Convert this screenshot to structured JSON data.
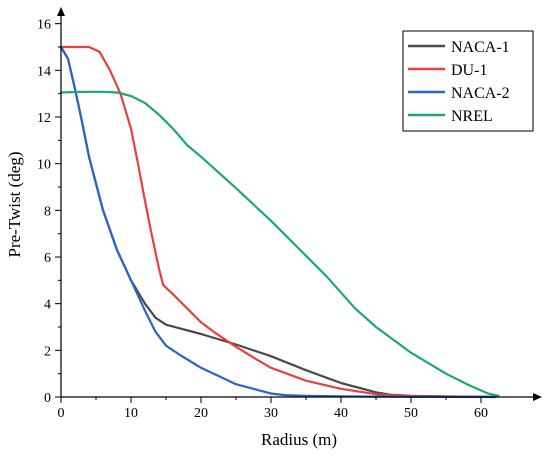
{
  "chart_data": {
    "type": "line",
    "title": "",
    "xlabel": "Radius (m)",
    "ylabel": "Pre-Twist (deg)",
    "xlim": [
      0,
      68
    ],
    "ylim": [
      0,
      16.5
    ],
    "xticks": [
      0,
      10,
      20,
      30,
      40,
      50,
      60
    ],
    "yticks": [
      0,
      2,
      4,
      6,
      8,
      10,
      12,
      14,
      16
    ],
    "grid": false,
    "legend_position": "top-right",
    "series": [
      {
        "name": "NACA-1",
        "color": "#4a4a4a",
        "points": [
          [
            0,
            15
          ],
          [
            1,
            14.5
          ],
          [
            2,
            13.2
          ],
          [
            3,
            11.8
          ],
          [
            4,
            10.3
          ],
          [
            6,
            8
          ],
          [
            8,
            6.3
          ],
          [
            10,
            5
          ],
          [
            12,
            4
          ],
          [
            13.5,
            3.4
          ],
          [
            15,
            3.1
          ],
          [
            20,
            2.7
          ],
          [
            25,
            2.25
          ],
          [
            30,
            1.75
          ],
          [
            35,
            1.15
          ],
          [
            40,
            0.6
          ],
          [
            45,
            0.2
          ],
          [
            47,
            0.1
          ],
          [
            50,
            0.05
          ],
          [
            55,
            0.02
          ],
          [
            60,
            0.01
          ],
          [
            62,
            0
          ]
        ]
      },
      {
        "name": "DU-1",
        "color": "#e8403c",
        "points": [
          [
            0,
            15
          ],
          [
            2,
            15
          ],
          [
            4,
            15
          ],
          [
            5.5,
            14.8
          ],
          [
            7,
            14
          ],
          [
            8.5,
            13
          ],
          [
            10,
            11.5
          ],
          [
            11,
            10
          ],
          [
            12,
            8.4
          ],
          [
            13,
            6.9
          ],
          [
            14,
            5.5
          ],
          [
            14.6,
            4.8
          ],
          [
            16,
            4.4
          ],
          [
            18,
            3.8
          ],
          [
            20,
            3.2
          ],
          [
            22,
            2.75
          ],
          [
            25,
            2.15
          ],
          [
            28,
            1.6
          ],
          [
            30,
            1.25
          ],
          [
            35,
            0.7
          ],
          [
            40,
            0.35
          ],
          [
            45,
            0.12
          ],
          [
            47,
            0.07
          ],
          [
            50,
            0.04
          ],
          [
            55,
            0.02
          ],
          [
            62,
            0.01
          ]
        ]
      },
      {
        "name": "NACA-2",
        "color": "#2a64cc",
        "points": [
          [
            0,
            15
          ],
          [
            1,
            14.5
          ],
          [
            2,
            13.2
          ],
          [
            3,
            11.8
          ],
          [
            4,
            10.3
          ],
          [
            6,
            8
          ],
          [
            8,
            6.3
          ],
          [
            10,
            5
          ],
          [
            12,
            3.7
          ],
          [
            13.5,
            2.8
          ],
          [
            15,
            2.2
          ],
          [
            17,
            1.8
          ],
          [
            20,
            1.25
          ],
          [
            25,
            0.55
          ],
          [
            30,
            0.15
          ],
          [
            32,
            0.08
          ],
          [
            35,
            0.05
          ],
          [
            40,
            0.03
          ],
          [
            50,
            0.01
          ],
          [
            60,
            0.005
          ],
          [
            62,
            0
          ]
        ]
      },
      {
        "name": "NREL",
        "color": "#1aab6a",
        "points": [
          [
            0,
            13.05
          ],
          [
            2,
            13.07
          ],
          [
            4,
            13.08
          ],
          [
            6,
            13.08
          ],
          [
            8,
            13.05
          ],
          [
            10,
            12.9
          ],
          [
            12,
            12.6
          ],
          [
            14,
            12.1
          ],
          [
            16,
            11.5
          ],
          [
            18,
            10.8
          ],
          [
            20,
            10.3
          ],
          [
            25,
            8.95
          ],
          [
            30,
            7.55
          ],
          [
            35,
            6.05
          ],
          [
            38,
            5.15
          ],
          [
            42,
            3.8
          ],
          [
            45,
            3.0
          ],
          [
            50,
            1.9
          ],
          [
            55,
            1.0
          ],
          [
            58,
            0.55
          ],
          [
            61,
            0.15
          ],
          [
            62.5,
            0.05
          ]
        ]
      }
    ]
  }
}
